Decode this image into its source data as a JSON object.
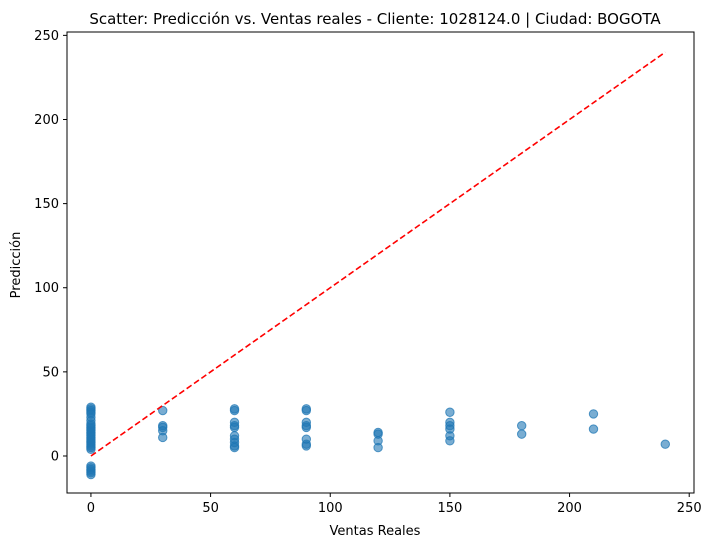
{
  "chart_data": {
    "type": "scatter",
    "title": "Scatter: Predicción vs. Ventas reales - Cliente: 1028124.0 | Ciudad: BOGOTA",
    "xlabel": "Ventas Reales",
    "ylabel": "Predicción",
    "xlim": [
      -10,
      252
    ],
    "ylim": [
      -22,
      252
    ],
    "xticks": [
      0,
      50,
      100,
      150,
      200,
      250
    ],
    "yticks": [
      0,
      50,
      100,
      150,
      200,
      250
    ],
    "grid": false,
    "point_color": "#1f77b4",
    "reference_line": {
      "color": "#ff0000",
      "style": "dashed",
      "points": [
        [
          0,
          0
        ],
        [
          240,
          240
        ]
      ]
    },
    "points": [
      [
        0,
        29
      ],
      [
        0,
        28
      ],
      [
        0,
        27
      ],
      [
        0,
        26
      ],
      [
        0,
        25
      ],
      [
        0,
        23
      ],
      [
        0,
        21
      ],
      [
        0,
        19
      ],
      [
        0,
        18
      ],
      [
        0,
        17
      ],
      [
        0,
        16
      ],
      [
        0,
        15
      ],
      [
        0,
        14
      ],
      [
        0,
        13
      ],
      [
        0,
        12
      ],
      [
        0,
        11
      ],
      [
        0,
        10
      ],
      [
        0,
        9
      ],
      [
        0,
        8
      ],
      [
        0,
        7
      ],
      [
        0,
        6
      ],
      [
        0,
        5
      ],
      [
        0,
        4
      ],
      [
        0,
        -6
      ],
      [
        0,
        -7
      ],
      [
        0,
        -8
      ],
      [
        0,
        -9
      ],
      [
        0,
        -10
      ],
      [
        0,
        -11
      ],
      [
        30,
        27
      ],
      [
        30,
        18
      ],
      [
        30,
        17
      ],
      [
        30,
        15
      ],
      [
        30,
        11
      ],
      [
        60,
        28
      ],
      [
        60,
        27
      ],
      [
        60,
        20
      ],
      [
        60,
        18
      ],
      [
        60,
        17
      ],
      [
        60,
        12
      ],
      [
        60,
        10
      ],
      [
        60,
        8
      ],
      [
        60,
        6
      ],
      [
        60,
        5
      ],
      [
        90,
        28
      ],
      [
        90,
        27
      ],
      [
        90,
        20
      ],
      [
        90,
        18
      ],
      [
        90,
        17
      ],
      [
        90,
        10
      ],
      [
        90,
        7
      ],
      [
        90,
        6
      ],
      [
        120,
        14
      ],
      [
        120,
        13
      ],
      [
        120,
        9
      ],
      [
        120,
        5
      ],
      [
        150,
        26
      ],
      [
        150,
        20
      ],
      [
        150,
        18
      ],
      [
        150,
        16
      ],
      [
        150,
        12
      ],
      [
        150,
        9
      ],
      [
        180,
        18
      ],
      [
        180,
        13
      ],
      [
        210,
        25
      ],
      [
        210,
        16
      ],
      [
        240,
        7
      ]
    ]
  }
}
